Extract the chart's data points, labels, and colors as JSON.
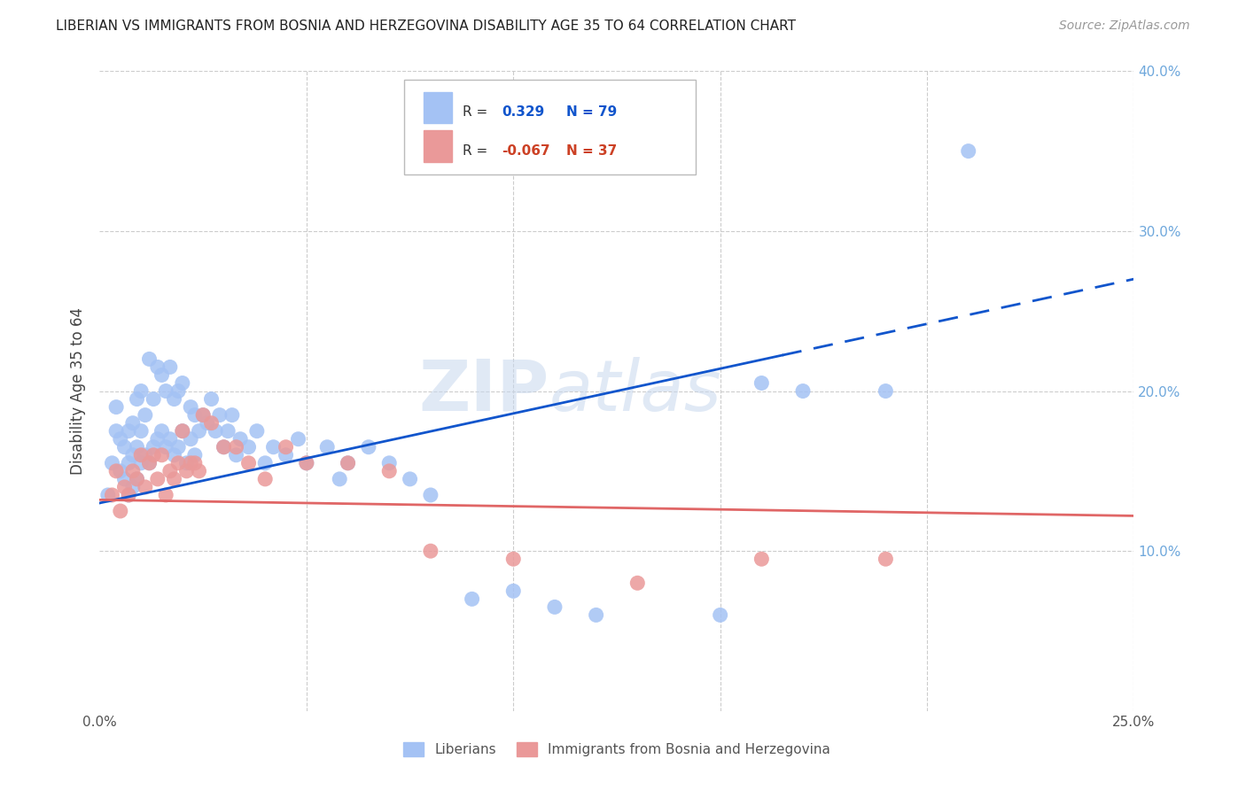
{
  "title": "LIBERIAN VS IMMIGRANTS FROM BOSNIA AND HERZEGOVINA DISABILITY AGE 35 TO 64 CORRELATION CHART",
  "source": "Source: ZipAtlas.com",
  "ylabel": "Disability Age 35 to 64",
  "xlim": [
    0.0,
    0.25
  ],
  "ylim": [
    0.0,
    0.4
  ],
  "liberian_R": 0.329,
  "liberian_N": 79,
  "bosnia_R": -0.067,
  "bosnia_N": 37,
  "liberian_color": "#a4c2f4",
  "bosnia_color": "#ea9999",
  "trendline_liberian_color": "#1155cc",
  "trendline_bosnia_color": "#e06666",
  "watermark_zip": "ZIP",
  "watermark_atlas": "atlas",
  "liberian_x": [
    0.002,
    0.003,
    0.004,
    0.004,
    0.005,
    0.005,
    0.006,
    0.006,
    0.007,
    0.007,
    0.007,
    0.008,
    0.008,
    0.008,
    0.009,
    0.009,
    0.009,
    0.01,
    0.01,
    0.01,
    0.011,
    0.011,
    0.012,
    0.012,
    0.013,
    0.013,
    0.014,
    0.014,
    0.015,
    0.015,
    0.016,
    0.016,
    0.017,
    0.017,
    0.018,
    0.018,
    0.019,
    0.019,
    0.02,
    0.02,
    0.021,
    0.022,
    0.022,
    0.023,
    0.023,
    0.024,
    0.025,
    0.026,
    0.027,
    0.028,
    0.029,
    0.03,
    0.031,
    0.032,
    0.033,
    0.034,
    0.036,
    0.038,
    0.04,
    0.042,
    0.045,
    0.048,
    0.05,
    0.055,
    0.058,
    0.06,
    0.065,
    0.07,
    0.075,
    0.08,
    0.09,
    0.1,
    0.11,
    0.12,
    0.15,
    0.16,
    0.17,
    0.19,
    0.21
  ],
  "liberian_y": [
    0.135,
    0.155,
    0.175,
    0.19,
    0.15,
    0.17,
    0.145,
    0.165,
    0.135,
    0.155,
    0.175,
    0.14,
    0.16,
    0.18,
    0.145,
    0.165,
    0.195,
    0.155,
    0.175,
    0.2,
    0.16,
    0.185,
    0.155,
    0.22,
    0.165,
    0.195,
    0.17,
    0.215,
    0.175,
    0.21,
    0.165,
    0.2,
    0.17,
    0.215,
    0.16,
    0.195,
    0.165,
    0.2,
    0.175,
    0.205,
    0.155,
    0.17,
    0.19,
    0.16,
    0.185,
    0.175,
    0.185,
    0.18,
    0.195,
    0.175,
    0.185,
    0.165,
    0.175,
    0.185,
    0.16,
    0.17,
    0.165,
    0.175,
    0.155,
    0.165,
    0.16,
    0.17,
    0.155,
    0.165,
    0.145,
    0.155,
    0.165,
    0.155,
    0.145,
    0.135,
    0.07,
    0.075,
    0.065,
    0.06,
    0.06,
    0.205,
    0.2,
    0.2,
    0.35
  ],
  "bosnia_x": [
    0.003,
    0.004,
    0.005,
    0.006,
    0.007,
    0.008,
    0.009,
    0.01,
    0.011,
    0.012,
    0.013,
    0.014,
    0.015,
    0.016,
    0.017,
    0.018,
    0.019,
    0.02,
    0.021,
    0.022,
    0.023,
    0.024,
    0.025,
    0.027,
    0.03,
    0.033,
    0.036,
    0.04,
    0.045,
    0.05,
    0.06,
    0.07,
    0.08,
    0.1,
    0.13,
    0.16,
    0.19
  ],
  "bosnia_y": [
    0.135,
    0.15,
    0.125,
    0.14,
    0.135,
    0.15,
    0.145,
    0.16,
    0.14,
    0.155,
    0.16,
    0.145,
    0.16,
    0.135,
    0.15,
    0.145,
    0.155,
    0.175,
    0.15,
    0.155,
    0.155,
    0.15,
    0.185,
    0.18,
    0.165,
    0.165,
    0.155,
    0.145,
    0.165,
    0.155,
    0.155,
    0.15,
    0.1,
    0.095,
    0.08,
    0.095,
    0.095
  ],
  "trendline_lib_x0": 0.0,
  "trendline_lib_y0": 0.13,
  "trendline_lib_x1": 0.25,
  "trendline_lib_y1": 0.27,
  "trendline_lib_solid_end": 0.165,
  "trendline_bos_x0": 0.0,
  "trendline_bos_y0": 0.132,
  "trendline_bos_x1": 0.25,
  "trendline_bos_y1": 0.122
}
